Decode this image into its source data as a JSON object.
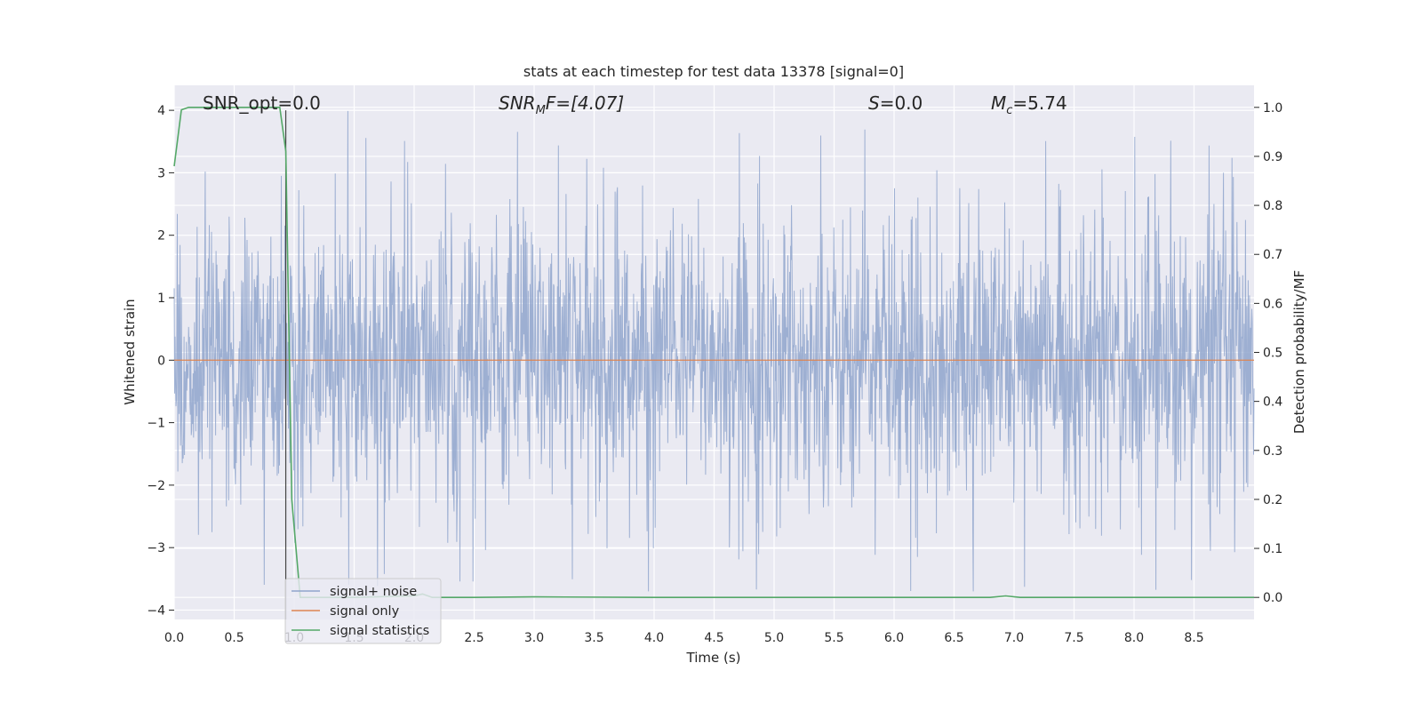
{
  "chart_data": {
    "type": "line",
    "title": "stats at each timestep for test data 13378 [signal=0]",
    "xlabel": "Time (s)",
    "ylabel": "Whitened strain",
    "y2label": "Detection probability/MF",
    "xlim": [
      0.0,
      9.0
    ],
    "ylim": [
      -4.15,
      4.4
    ],
    "y2lim": [
      -0.045,
      1.045
    ],
    "x_ticks": [
      "0.0",
      "0.5",
      "1.0",
      "1.5",
      "2.0",
      "2.5",
      "3.0",
      "3.5",
      "4.0",
      "4.5",
      "5.0",
      "5.5",
      "6.0",
      "6.5",
      "7.0",
      "7.5",
      "8.0",
      "8.5"
    ],
    "y_ticks": [
      "−4",
      "−3",
      "−2",
      "−1",
      "0",
      "1",
      "2",
      "3",
      "4"
    ],
    "y2_ticks": [
      "0.0",
      "0.1",
      "0.2",
      "0.3",
      "0.4",
      "0.5",
      "0.6",
      "0.7",
      "0.8",
      "0.9",
      "1.0"
    ],
    "grid": true,
    "legend_position": "lower-left",
    "annotations": {
      "snr_opt": "SNR_opt=0.0",
      "snr_mf_main": "SNR",
      "snr_mf_sub": "M",
      "snr_mf_rest": "F=[4.07]",
      "s_main": "S",
      "s_rest": "=0.0",
      "mc_main": "M",
      "mc_sub": "c",
      "mc_rest": "=5.74"
    },
    "vertical_marker_x": 0.93,
    "series": [
      {
        "name": "signal+ noise",
        "color": "#8fa4cc",
        "axis": "left",
        "description_values": "whitened noise, roughly within -3.7 to 4.0 across 0-9 s",
        "approx_envelope": {
          "upper": 1.65,
          "lower": -1.45,
          "peak_max": 4.0,
          "peak_min": -3.7
        }
      },
      {
        "name": "signal only",
        "color": "#dd8452",
        "axis": "left",
        "x": [
          0.0,
          9.0
        ],
        "y": [
          0.0,
          0.0
        ]
      },
      {
        "name": "signal statistics",
        "color": "#55a868",
        "axis": "right",
        "x": [
          0.0,
          0.06,
          0.12,
          0.25,
          0.5,
          0.75,
          0.88,
          0.93,
          0.98,
          1.05,
          1.5,
          2.0,
          2.07,
          2.15,
          2.5,
          3.0,
          4.0,
          5.0,
          6.0,
          6.8,
          6.93,
          7.05,
          8.0,
          9.0
        ],
        "y": [
          0.88,
          0.995,
          1.0,
          1.0,
          1.0,
          1.0,
          1.0,
          0.91,
          0.2,
          0.0,
          0.0,
          0.003,
          0.007,
          0.0,
          0.0,
          0.001,
          0.0,
          0.0,
          0.0,
          0.0,
          0.003,
          0.0,
          0.0,
          0.0
        ]
      }
    ]
  }
}
